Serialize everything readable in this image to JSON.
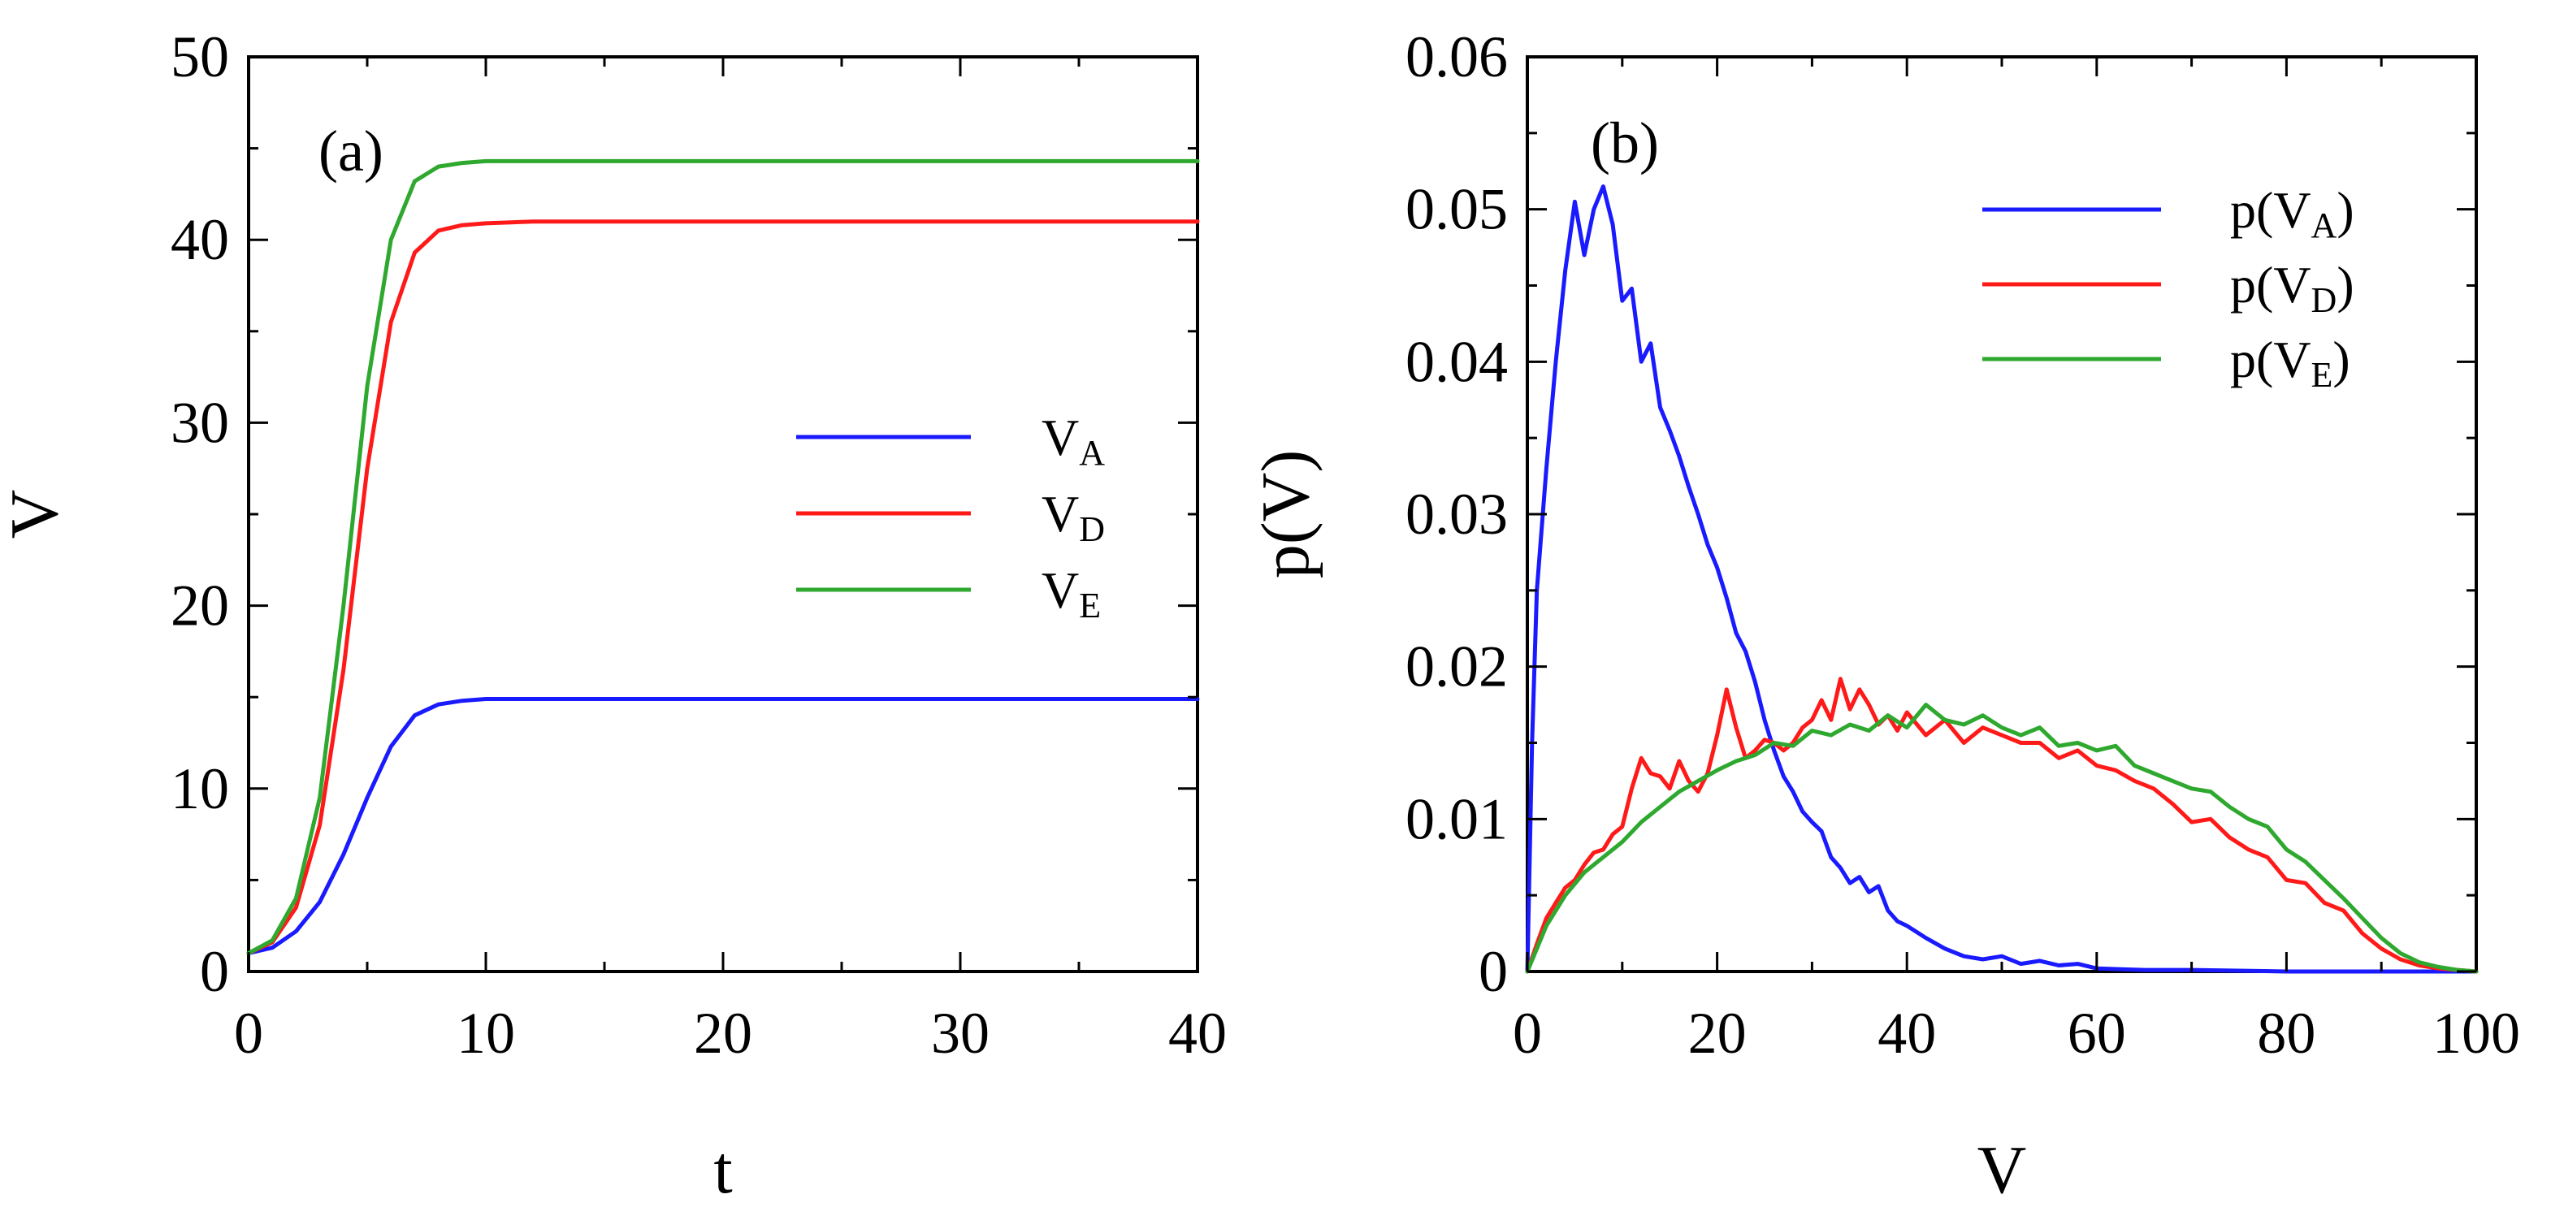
{
  "chart_data": [
    {
      "panel_label": "(a)",
      "type": "line",
      "xlabel": "t",
      "ylabel": "V",
      "xlim": [
        0,
        40
      ],
      "ylim": [
        0,
        50
      ],
      "xticks": [
        0,
        10,
        20,
        30,
        40
      ],
      "yticks": [
        0,
        10,
        20,
        30,
        40,
        50
      ],
      "legend_position": "center-right",
      "series": [
        {
          "name": "V_A",
          "label_main": "V",
          "label_sub": "A",
          "color": "#1a1aff",
          "x": [
            0,
            1,
            2,
            3,
            4,
            5,
            6,
            7,
            8,
            9,
            10,
            12,
            15,
            20,
            25,
            30,
            35,
            40
          ],
          "y": [
            1.0,
            1.3,
            2.2,
            3.8,
            6.4,
            9.5,
            12.3,
            14.0,
            14.6,
            14.8,
            14.9,
            14.9,
            14.9,
            14.9,
            14.9,
            14.9,
            14.9,
            14.9
          ]
        },
        {
          "name": "V_D",
          "label_main": "V",
          "label_sub": "D",
          "color": "#ff1a1a",
          "x": [
            0,
            1,
            2,
            3,
            4,
            5,
            6,
            7,
            8,
            9,
            10,
            12,
            15,
            20,
            25,
            30,
            35,
            40
          ],
          "y": [
            1.0,
            1.6,
            3.5,
            8.0,
            16.5,
            27.5,
            35.5,
            39.3,
            40.5,
            40.8,
            40.9,
            41.0,
            41.0,
            41.0,
            41.0,
            41.0,
            41.0,
            41.0
          ]
        },
        {
          "name": "V_E",
          "label_main": "V",
          "label_sub": "E",
          "color": "#2ea82e",
          "x": [
            0,
            1,
            2,
            3,
            4,
            5,
            6,
            7,
            8,
            9,
            10,
            12,
            15,
            20,
            25,
            30,
            35,
            40
          ],
          "y": [
            1.0,
            1.7,
            4.0,
            9.5,
            20.0,
            32.0,
            40.0,
            43.2,
            44.0,
            44.2,
            44.3,
            44.3,
            44.3,
            44.3,
            44.3,
            44.3,
            44.3,
            44.3
          ]
        }
      ]
    },
    {
      "panel_label": "(b)",
      "type": "line",
      "xlabel": "V",
      "ylabel": "p(V)",
      "xlim": [
        0,
        100
      ],
      "ylim": [
        0,
        0.06
      ],
      "xticks": [
        0,
        20,
        40,
        60,
        80,
        100
      ],
      "yticks": [
        0,
        0.01,
        0.02,
        0.03,
        0.04,
        0.05,
        0.06
      ],
      "ytick_labels": [
        "0",
        "0.01",
        "0.02",
        "0.03",
        "0.04",
        "0.05",
        "0.06"
      ],
      "legend_position": "top-right",
      "series": [
        {
          "name": "p(V_A)",
          "label_pre": "p(V",
          "label_sub": "A",
          "label_post": ")",
          "color": "#1a1aff",
          "x": [
            0,
            0.5,
            1,
            2,
            3,
            4,
            5,
            6,
            7,
            8,
            9,
            10,
            11,
            12,
            13,
            14,
            15,
            16,
            17,
            18,
            19,
            20,
            21,
            22,
            23,
            24,
            25,
            26,
            27,
            28,
            29,
            30,
            31,
            32,
            33,
            34,
            35,
            36,
            37,
            38,
            39,
            40,
            42,
            44,
            46,
            48,
            50,
            52,
            54,
            56,
            58,
            60,
            65,
            70,
            80,
            90,
            100
          ],
          "y": [
            0.0,
            0.015,
            0.025,
            0.033,
            0.04,
            0.046,
            0.0505,
            0.047,
            0.05,
            0.0515,
            0.049,
            0.044,
            0.0448,
            0.04,
            0.0412,
            0.037,
            0.0355,
            0.0338,
            0.0318,
            0.03,
            0.028,
            0.0265,
            0.0245,
            0.0222,
            0.021,
            0.019,
            0.0165,
            0.0145,
            0.0128,
            0.0118,
            0.0105,
            0.0098,
            0.0092,
            0.0075,
            0.0068,
            0.0058,
            0.0062,
            0.0052,
            0.0056,
            0.004,
            0.0033,
            0.003,
            0.0022,
            0.0015,
            0.001,
            0.0008,
            0.001,
            0.0005,
            0.0007,
            0.0004,
            0.0005,
            0.0002,
            0.0001,
            0.0001,
            0.0,
            0.0,
            0.0
          ]
        },
        {
          "name": "p(V_D)",
          "label_pre": "p(V",
          "label_sub": "D",
          "label_post": ")",
          "color": "#ff1a1a",
          "x": [
            0,
            1,
            2,
            3,
            4,
            5,
            6,
            7,
            8,
            9,
            10,
            11,
            12,
            13,
            14,
            15,
            16,
            17,
            18,
            19,
            20,
            21,
            22,
            23,
            24,
            25,
            26,
            27,
            28,
            29,
            30,
            31,
            32,
            33,
            34,
            35,
            36,
            37,
            38,
            39,
            40,
            42,
            44,
            46,
            48,
            50,
            52,
            54,
            56,
            58,
            60,
            62,
            64,
            66,
            68,
            70,
            72,
            74,
            76,
            78,
            80,
            82,
            84,
            86,
            88,
            90,
            92,
            94,
            96,
            98,
            100
          ],
          "y": [
            0.0,
            0.0018,
            0.0035,
            0.0045,
            0.0055,
            0.006,
            0.007,
            0.0078,
            0.008,
            0.009,
            0.0095,
            0.012,
            0.014,
            0.013,
            0.0128,
            0.012,
            0.0138,
            0.0125,
            0.0118,
            0.013,
            0.0155,
            0.0185,
            0.016,
            0.014,
            0.0145,
            0.0152,
            0.015,
            0.0145,
            0.015,
            0.016,
            0.0165,
            0.0178,
            0.0165,
            0.0192,
            0.0172,
            0.0185,
            0.0175,
            0.0162,
            0.0168,
            0.0158,
            0.017,
            0.0155,
            0.0165,
            0.015,
            0.016,
            0.0155,
            0.015,
            0.015,
            0.014,
            0.0145,
            0.0135,
            0.0132,
            0.0125,
            0.012,
            0.011,
            0.0098,
            0.01,
            0.0088,
            0.008,
            0.0075,
            0.006,
            0.0058,
            0.0045,
            0.004,
            0.0025,
            0.0015,
            0.0008,
            0.0004,
            0.0002,
            0.0001,
            0.0
          ]
        },
        {
          "name": "p(V_E)",
          "label_pre": "p(V",
          "label_sub": "E",
          "label_post": ")",
          "color": "#2ea82e",
          "x": [
            0,
            2,
            4,
            6,
            8,
            10,
            12,
            14,
            16,
            18,
            20,
            22,
            24,
            26,
            28,
            30,
            32,
            34,
            36,
            38,
            40,
            42,
            44,
            46,
            48,
            50,
            52,
            54,
            56,
            58,
            60,
            62,
            64,
            66,
            68,
            70,
            72,
            74,
            76,
            78,
            80,
            82,
            84,
            86,
            88,
            90,
            92,
            94,
            96,
            98,
            100
          ],
          "y": [
            0.0,
            0.003,
            0.005,
            0.0065,
            0.0075,
            0.0085,
            0.0098,
            0.0108,
            0.0118,
            0.0125,
            0.0132,
            0.0138,
            0.0142,
            0.015,
            0.0148,
            0.0158,
            0.0155,
            0.0162,
            0.0158,
            0.0168,
            0.016,
            0.0175,
            0.0165,
            0.0162,
            0.0168,
            0.016,
            0.0155,
            0.016,
            0.0148,
            0.015,
            0.0145,
            0.0148,
            0.0135,
            0.013,
            0.0125,
            0.012,
            0.0118,
            0.0108,
            0.01,
            0.0095,
            0.008,
            0.0072,
            0.006,
            0.0048,
            0.0035,
            0.0022,
            0.0012,
            0.0006,
            0.0003,
            0.0001,
            0.0
          ]
        }
      ]
    }
  ]
}
